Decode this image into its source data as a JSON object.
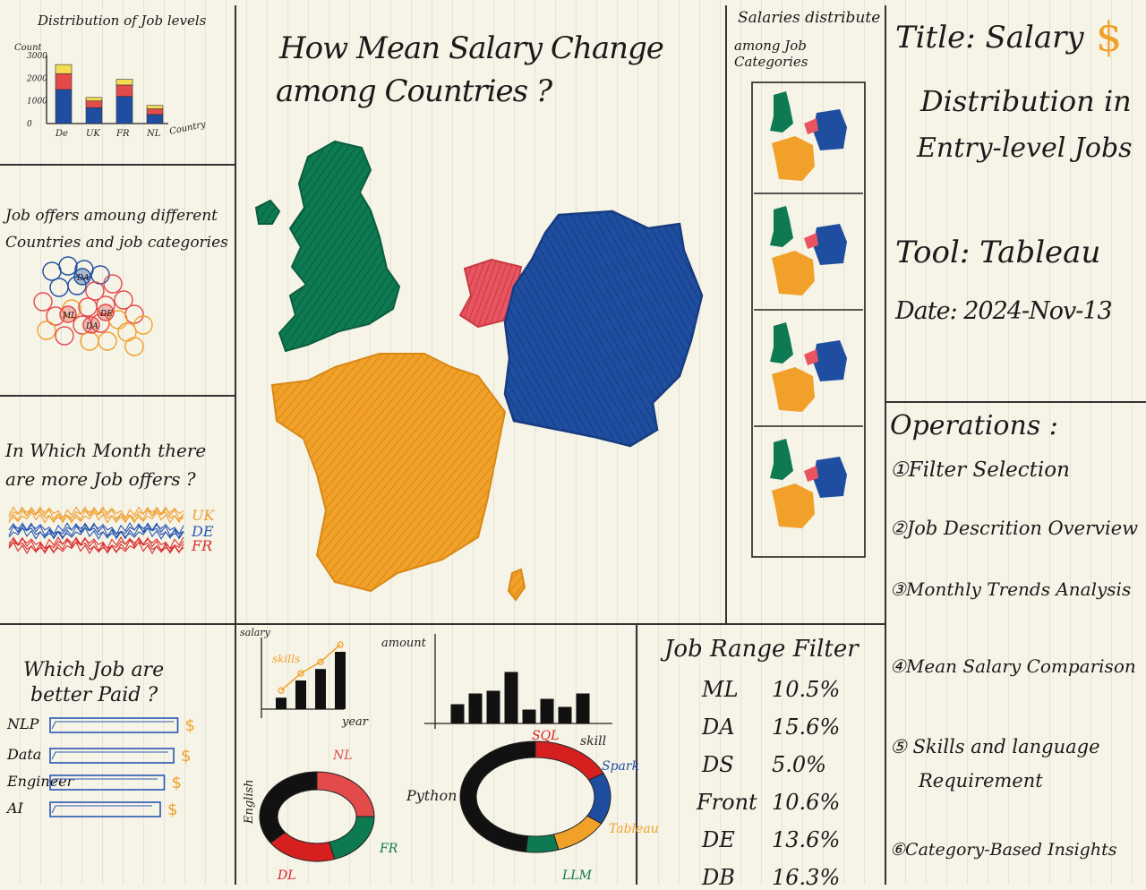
{
  "sketch": {
    "job_levels": {
      "title": "Distribution of Job levels",
      "ylabel": "Count",
      "xlabel": "Country",
      "chart_data": {
        "type": "bar",
        "stacked": true,
        "ylim": [
          0,
          3000
        ],
        "yticks": [
          "0",
          "1000",
          "2000",
          "3000"
        ],
        "categories": [
          "De",
          "UK",
          "FR",
          "NL"
        ],
        "series": [
          {
            "values": [
              1500,
              700,
              1200,
              400
            ],
            "color": "#1f4ea1"
          },
          {
            "values": [
              700,
              300,
              500,
              250
            ],
            "color": "#e34a4a"
          },
          {
            "values": [
              400,
              150,
              250,
              150
            ],
            "color": "#f3dc52"
          }
        ]
      }
    },
    "job_offers": {
      "title_line1": "Job offers amoung different",
      "title_line2": "Countries and job categories",
      "bubbles": [
        {
          "label": "DA",
          "color": "#1f4ea1"
        },
        {
          "label": "ML",
          "color": "#e34a4a"
        },
        {
          "label": "DA",
          "color": "#e34a4a"
        },
        {
          "label": "DE",
          "color": "#e34a4a"
        }
      ]
    },
    "monthly": {
      "title_line1": "In Which Month there",
      "title_line2": "are more Job offers ?",
      "chart_data": {
        "type": "line",
        "series": [
          {
            "name": "UK",
            "color": "#f0a030"
          },
          {
            "name": "DE",
            "color": "#2a58b3"
          },
          {
            "name": "FR",
            "color": "#d93030"
          }
        ]
      }
    },
    "better_paid": {
      "title_line1": "Which Job are",
      "title_line2": "better Paid ?",
      "chart_data": {
        "type": "bar",
        "orientation": "horizontal",
        "categories": [
          "NLP",
          "Data",
          "Engineer",
          "AI"
        ],
        "values": [
          0.95,
          0.92,
          0.85,
          0.82
        ]
      },
      "dollar": "$"
    },
    "map": {
      "title_line1": "How Mean Salary Change",
      "title_line2": "among Countries ?",
      "countries": [
        {
          "name": "UK",
          "color": "#0d7a52"
        },
        {
          "name": "DE",
          "color": "#1f4ea1"
        },
        {
          "name": "NL",
          "color": "#e85560"
        },
        {
          "name": "FR",
          "color": "#f1a129"
        }
      ]
    },
    "categories_map": {
      "title_line1": "Salaries distribute",
      "title_line2": "among Job Categories"
    },
    "info": {
      "title_line1": "Title: Salary",
      "title_line2": "Distribution in",
      "title_line3": "Entry-level Jobs",
      "dollar": "$",
      "tool": "Tool: Tableau",
      "date": "Date: 2024-Nov-13"
    },
    "operations": {
      "heading": "Operations :",
      "items": [
        "①Filter Selection",
        "②Job Descrition Overview",
        "③Monthly Trends Analysis",
        "④Mean Salary Comparison",
        "⑤ Skills and language",
        "Requirement",
        "⑥Category-Based Insights"
      ]
    },
    "skills_chart": {
      "ylabel": "salary",
      "xlabel": "year",
      "annotation": "skills",
      "chart_data": {
        "type": "bar",
        "values": [
          0.2,
          0.5,
          0.7,
          1.0
        ]
      }
    },
    "amount_chart": {
      "ylabel": "amount",
      "xlabel": "skill",
      "chart_data": {
        "type": "bar",
        "values": [
          0.35,
          0.55,
          0.6,
          0.95,
          0.25,
          0.45,
          0.3,
          0.55
        ]
      }
    },
    "english_donut": {
      "label": "English",
      "chart_data": {
        "type": "pie",
        "segments": [
          {
            "name": "NL",
            "value": 0.25,
            "color": "#e34a4a"
          },
          {
            "name": "FR",
            "value": 0.2,
            "color": "#0d7a52"
          },
          {
            "name": "DL",
            "value": 0.2,
            "color": "#d62020"
          },
          {
            "name": "",
            "value": 0.35,
            "color": "#111111"
          }
        ]
      }
    },
    "python_donut": {
      "label": "Python",
      "chart_data": {
        "type": "pie",
        "segments": [
          {
            "name": "SQL",
            "value": 0.18,
            "color": "#d62020"
          },
          {
            "name": "Spark",
            "value": 0.15,
            "color": "#1f4ea1"
          },
          {
            "name": "Tableau",
            "value": 0.12,
            "color": "#f1a129"
          },
          {
            "name": "LLM",
            "value": 0.07,
            "color": "#0d7a52"
          },
          {
            "name": "",
            "value": 0.48,
            "color": "#111111"
          }
        ]
      }
    },
    "job_range": {
      "title": "Job Range Filter",
      "rows": [
        {
          "code": "ML",
          "pct": "10.5%"
        },
        {
          "code": "DA",
          "pct": "15.6%"
        },
        {
          "code": "DS",
          "pct": "5.0%"
        },
        {
          "code": "Front",
          "pct": "10.6%"
        },
        {
          "code": "DE",
          "pct": "13.6%"
        },
        {
          "code": "DB",
          "pct": "16.3%"
        }
      ]
    }
  }
}
